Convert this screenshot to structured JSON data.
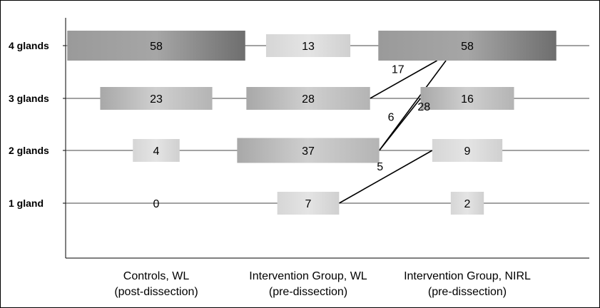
{
  "chart_data": {
    "type": "flow-bubble",
    "rows": [
      "4 glands",
      "3 glands",
      "2 glands",
      "1 gland"
    ],
    "columns": [
      {
        "line1": "Controls, WL",
        "line2": "(post-dissection)"
      },
      {
        "line1": "Intervention Group, WL",
        "line2": "(pre-dissection)"
      },
      {
        "line1": "Intervention Group, NIRL",
        "line2": "(pre-dissection)"
      }
    ],
    "values": [
      [
        58,
        13,
        58
      ],
      [
        23,
        28,
        16
      ],
      [
        4,
        37,
        9
      ],
      [
        0,
        7,
        2
      ]
    ],
    "flows": [
      {
        "from": [
          1,
          "3 glands"
        ],
        "to": [
          2,
          "4 glands"
        ],
        "value": 17
      },
      {
        "from": [
          1,
          "2 glands"
        ],
        "to": [
          2,
          "4 glands"
        ],
        "value": 28
      },
      {
        "from": [
          1,
          "2 glands"
        ],
        "to": [
          2,
          "3 glands"
        ],
        "value": 6
      },
      {
        "from": [
          1,
          "1 gland"
        ],
        "to": [
          2,
          "2 glands"
        ],
        "value": 5
      }
    ],
    "box_fill": "gradient grey"
  }
}
